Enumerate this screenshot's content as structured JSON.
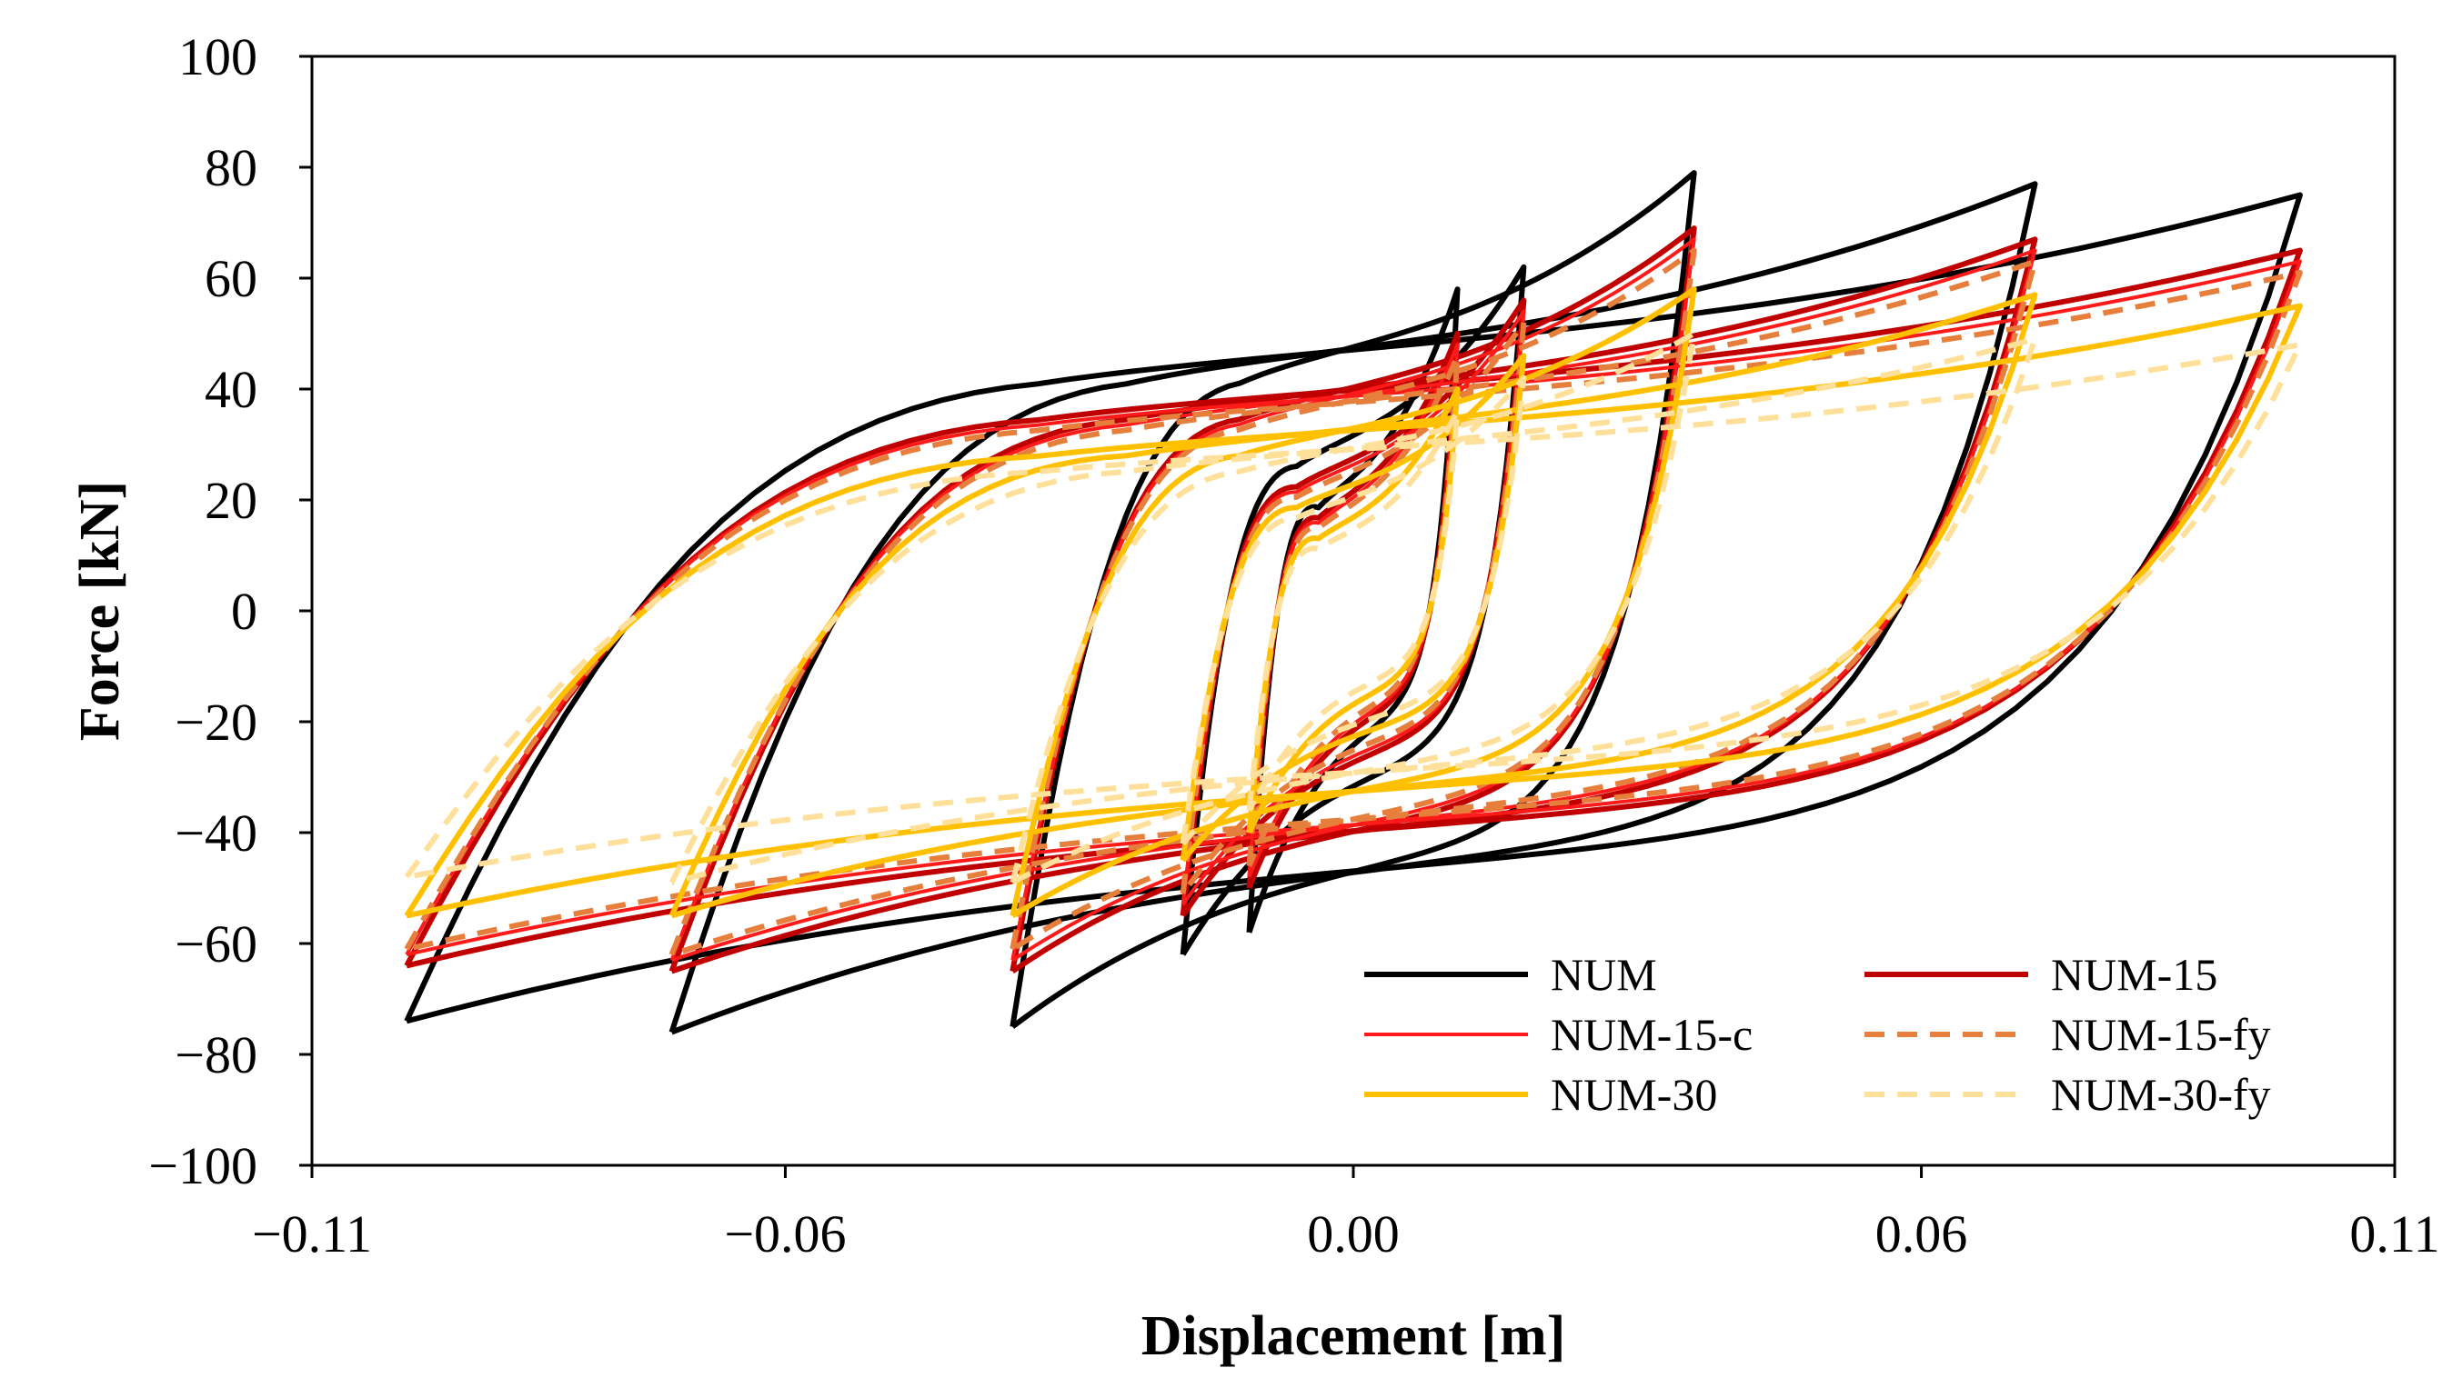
{
  "chart_data": {
    "type": "line",
    "title": "",
    "xlabel": "Displacement [m]",
    "ylabel": "Force [kN]",
    "xlim": [
      -0.11,
      0.11
    ],
    "ylim": [
      -100,
      100
    ],
    "xticks": [
      -0.11,
      -0.06,
      0.0,
      0.06,
      0.11
    ],
    "xtick_labels": [
      "−0.11",
      "−0.06",
      "0.00",
      "0.06",
      "0.11"
    ],
    "yticks": [
      100,
      80,
      60,
      40,
      20,
      0,
      -20,
      -40,
      -60,
      -80,
      -100
    ],
    "ytick_labels": [
      "100",
      "80",
      "60",
      "40",
      "20",
      "0",
      "−20",
      "−40",
      "−60",
      "−80",
      "−100"
    ],
    "grid": false,
    "legend_position": "bottom-right",
    "amplitudes": [
      0.011,
      0.018,
      0.036,
      0.072,
      0.1
    ],
    "series": [
      {
        "name": "NUM",
        "color": "#000000",
        "dashed": false,
        "stroke": "thick",
        "peaks": [
          58,
          62,
          79,
          77,
          75
        ],
        "mins": [
          -58,
          -62,
          -75,
          -76,
          -74
        ],
        "residual": [
          20,
          28,
          44,
          44,
          44
        ]
      },
      {
        "name": "NUM-15",
        "color": "#c00000",
        "dashed": false,
        "stroke": "thick",
        "peaks": [
          50,
          56,
          69,
          67,
          65
        ],
        "mins": [
          -50,
          -55,
          -65,
          -65,
          -64
        ],
        "residual": [
          18,
          24,
          37,
          37,
          37
        ]
      },
      {
        "name": "NUM-15-c",
        "color": "#ff1a1a",
        "dashed": false,
        "stroke": "thin",
        "peaks": [
          48,
          54,
          67,
          65,
          63
        ],
        "mins": [
          -48,
          -53,
          -63,
          -63,
          -62
        ],
        "residual": [
          17,
          23,
          36,
          36,
          36
        ]
      },
      {
        "name": "NUM-15-fy",
        "color": "#e67e3c",
        "dashed": true,
        "stroke": "thick",
        "peaks": [
          46,
          52,
          65,
          63,
          61
        ],
        "mins": [
          -46,
          -51,
          -61,
          -62,
          -61
        ],
        "residual": [
          16,
          22,
          35,
          35,
          35
        ]
      },
      {
        "name": "NUM-30",
        "color": "#ffc000",
        "dashed": false,
        "stroke": "thick",
        "peaks": [
          40,
          46,
          58,
          57,
          55
        ],
        "mins": [
          -40,
          -45,
          -55,
          -55,
          -55
        ],
        "residual": [
          14,
          20,
          30,
          30,
          30
        ]
      },
      {
        "name": "NUM-30-fy",
        "color": "#ffe09a",
        "dashed": true,
        "stroke": "thick",
        "peaks": [
          36,
          42,
          50,
          49,
          48
        ],
        "mins": [
          -36,
          -42,
          -49,
          -49,
          -48
        ],
        "residual": [
          12,
          18,
          27,
          27,
          27
        ]
      }
    ]
  }
}
